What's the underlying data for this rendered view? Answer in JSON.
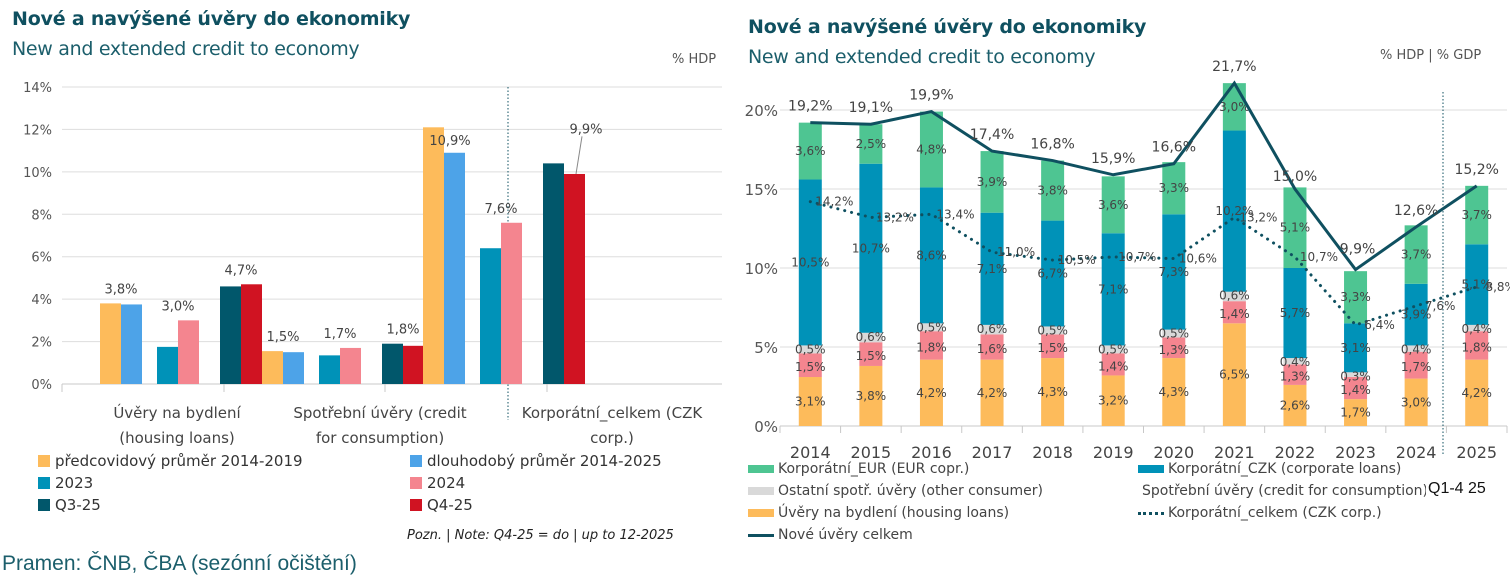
{
  "left": {
    "title": "Nové a navýšené úvěry do ekonomiky",
    "subtitle": "New and extended credit to economy",
    "unit": "% HDP",
    "legend": [
      {
        "label": "předcovidový průměr 2014-2019",
        "color": "#fdbb5b"
      },
      {
        "label": "dlouhodobý průměr 2014-2025",
        "color": "#4da3e8"
      },
      {
        "label": "2023",
        "color": "#0092b8"
      },
      {
        "label": "2024",
        "color": "#f4858f"
      },
      {
        "label": "Q3-25",
        "color": "#01576b"
      },
      {
        "label": "Q4-25",
        "color": "#d01322"
      }
    ],
    "note": "Pozn. | Note: Q4-25 = do | up to 12-2025"
  },
  "right": {
    "title": "Nové a navýšené úvěry do ekonomiky",
    "subtitle": "New and extended credit to economy",
    "unit": "% HDP | % GDP",
    "legend": [
      {
        "label": "Korporátní_EUR (EUR copr.)",
        "color": "#4ec592",
        "kind": "bar"
      },
      {
        "label": "Korporátní_CZK (corporate loans)",
        "color": "#0092b8",
        "kind": "bar"
      },
      {
        "label": "Ostatní spotř. úvěry (other consumer)",
        "color": "#d9d9d9",
        "kind": "bar"
      },
      {
        "label": "Spotřební úvěry (credit for consumption)",
        "color": "#f4858f",
        "kind": "bar"
      },
      {
        "label": "Úvěry na bydlení (housing loans)",
        "color": "#fdbb5b",
        "kind": "bar"
      },
      {
        "label": "Korporátní_celkem (CZK corp.)",
        "color": "#0f5060",
        "kind": "dots"
      },
      {
        "label": "Nové úvěry celkem",
        "color": "#0f5060",
        "kind": "line"
      }
    ],
    "period_label": "Q1-4 25"
  },
  "source": "Pramen: ČNB, ČBA (sezónní očištění)",
  "chart_data": [
    {
      "type": "bar",
      "title": "Nové a navýšené úvěry do ekonomiky / New and extended credit to economy",
      "ylabel": "% HDP",
      "ylim": [
        0,
        14
      ],
      "yticks": [
        "0%",
        "2%",
        "4%",
        "6%",
        "8%",
        "10%",
        "12%",
        "14%"
      ],
      "grid": true,
      "legend_position": "bottom",
      "categories": [
        "Úvěry na bydlení (housing loans)",
        "Spotřební úvěry (credit for consumption)",
        "Korporátní_celkem (CZK corp.)"
      ],
      "series": [
        {
          "name": "předcovidový průměr 2014-2019",
          "values": [
            3.8,
            1.55,
            12.1
          ]
        },
        {
          "name": "dlouhodobý průměr 2014-2025",
          "values": [
            3.75,
            1.5,
            10.9
          ]
        },
        {
          "name": "2023",
          "values": [
            1.75,
            1.35,
            6.4
          ]
        },
        {
          "name": "2024",
          "values": [
            3.0,
            1.7,
            7.6
          ]
        },
        {
          "name": "Q3-25",
          "values": [
            4.6,
            1.9,
            10.4
          ]
        },
        {
          "name": "Q4-25",
          "values": [
            4.7,
            1.8,
            9.9
          ]
        }
      ],
      "data_labels": [
        {
          "category": 0,
          "series": 1,
          "text": "3,8%"
        },
        {
          "category": 0,
          "series": 3,
          "text": "3,0%"
        },
        {
          "category": 0,
          "series": 5,
          "text": "4,7%"
        },
        {
          "category": 1,
          "series": 1,
          "text": "1,5%"
        },
        {
          "category": 1,
          "series": 3,
          "text": "1,7%"
        },
        {
          "category": 1,
          "series": 5,
          "text": "1,8%"
        },
        {
          "category": 2,
          "series": 1,
          "text": "10,9%"
        },
        {
          "category": 2,
          "series": 3,
          "text": "7,6%"
        },
        {
          "category": 2,
          "series": 5,
          "text": "9,9%"
        }
      ]
    },
    {
      "type": "bar",
      "stacked": true,
      "title": "Nové a navýšené úvěry do ekonomiky / New and extended credit to economy",
      "ylabel": "% HDP | % GDP",
      "ylim": [
        0,
        22
      ],
      "yticks": [
        "0%",
        "5%",
        "10%",
        "15%",
        "20%"
      ],
      "grid": true,
      "legend_position": "bottom",
      "categories": [
        "2014",
        "2015",
        "2016",
        "2017",
        "2018",
        "2019",
        "2020",
        "2021",
        "2022",
        "2023",
        "2024",
        "2025"
      ],
      "series": [
        {
          "name": "Úvěry na bydlení (housing loans)",
          "values": [
            3.1,
            3.8,
            4.2,
            4.2,
            4.3,
            3.2,
            4.3,
            6.5,
            2.6,
            1.7,
            3.0,
            4.2
          ]
        },
        {
          "name": "Spotřební úvěry (credit for consumption)",
          "values": [
            1.5,
            1.5,
            1.8,
            1.6,
            1.5,
            1.4,
            1.3,
            1.4,
            1.3,
            1.4,
            1.7,
            1.8
          ]
        },
        {
          "name": "Ostatní spotř. úvěry (other consumer)",
          "values": [
            0.5,
            0.6,
            0.5,
            0.6,
            0.5,
            0.5,
            0.5,
            0.6,
            0.4,
            0.3,
            0.4,
            0.4
          ]
        },
        {
          "name": "Korporátní_CZK (corporate loans)",
          "values": [
            10.5,
            10.7,
            8.6,
            7.1,
            6.7,
            7.1,
            7.3,
            10.2,
            5.7,
            3.1,
            3.9,
            5.1
          ]
        },
        {
          "name": "Korporátní_EUR (EUR copr.)",
          "values": [
            3.6,
            2.5,
            4.8,
            3.9,
            3.8,
            3.6,
            3.3,
            3.0,
            5.1,
            3.3,
            3.7,
            3.7
          ]
        }
      ],
      "lines": [
        {
          "name": "Nové úvěry celkem",
          "style": "solid",
          "values": [
            19.2,
            19.1,
            19.9,
            17.4,
            16.8,
            15.9,
            16.6,
            21.7,
            15.0,
            9.9,
            12.6,
            15.2
          ]
        },
        {
          "name": "Korporátní_celkem (CZK corp.)",
          "style": "dotted",
          "values": [
            14.2,
            13.2,
            13.4,
            11.0,
            10.5,
            10.7,
            10.6,
            13.2,
            10.7,
            6.4,
            7.6,
            8.8
          ]
        }
      ],
      "annotation": "Q1-4 25"
    }
  ]
}
